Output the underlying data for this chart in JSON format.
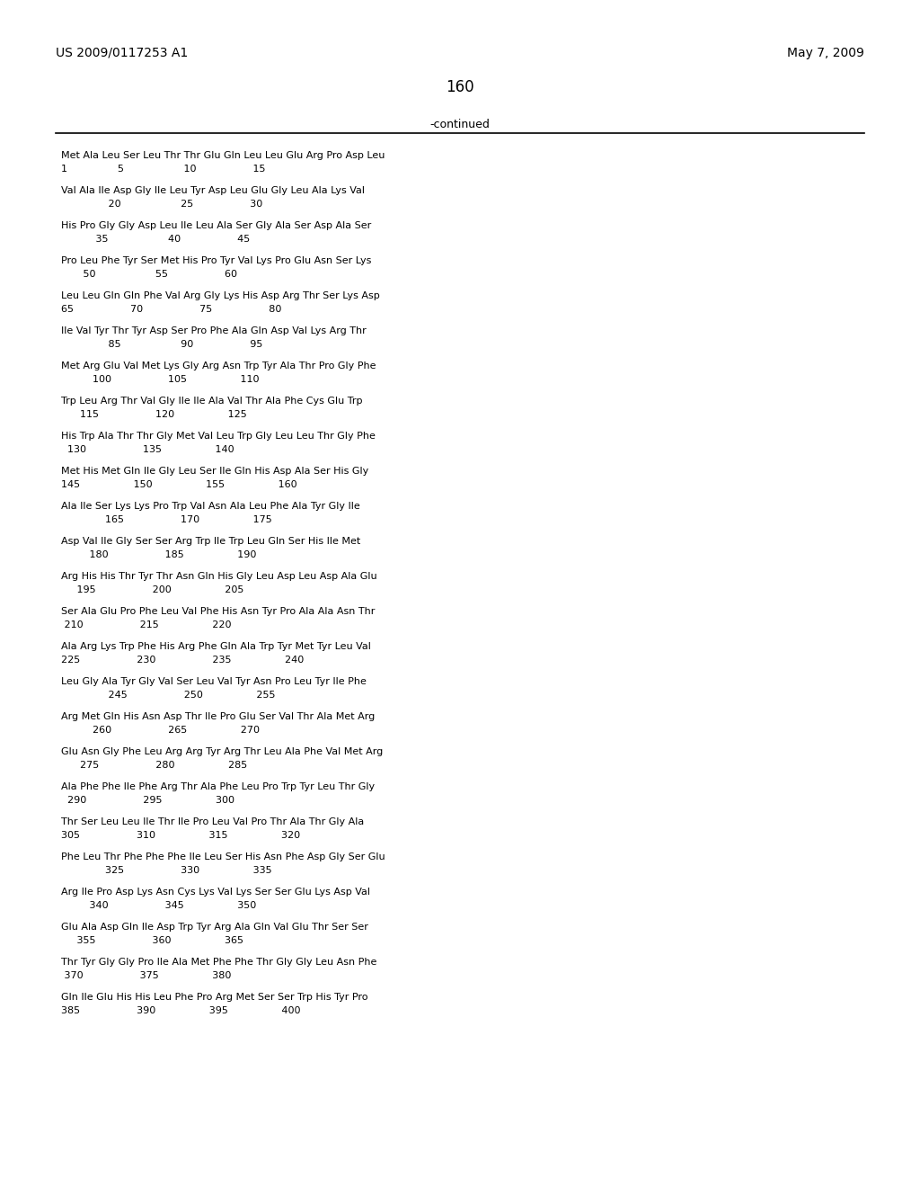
{
  "header_left": "US 2009/0117253 A1",
  "header_right": "May 7, 2009",
  "page_number": "160",
  "continued_label": "-continued",
  "background_color": "#ffffff",
  "text_color": "#000000",
  "lines": [
    [
      "Met Ala Leu Ser Leu Thr Thr Glu Gln Leu Leu Glu Arg Pro Asp Leu",
      "1                5                   10                  15"
    ],
    [
      "Val Ala Ile Asp Gly Ile Leu Tyr Asp Leu Glu Gly Leu Ala Lys Val",
      "               20                   25                  30"
    ],
    [
      "His Pro Gly Gly Asp Leu Ile Leu Ala Ser Gly Ala Ser Asp Ala Ser",
      "           35                   40                  45"
    ],
    [
      "Pro Leu Phe Tyr Ser Met His Pro Tyr Val Lys Pro Glu Asn Ser Lys",
      "       50                   55                  60"
    ],
    [
      "Leu Leu Gln Gln Phe Val Arg Gly Lys His Asp Arg Thr Ser Lys Asp",
      "65                  70                  75                  80"
    ],
    [
      "Ile Val Tyr Thr Tyr Asp Ser Pro Phe Ala Gln Asp Val Lys Arg Thr",
      "               85                   90                  95"
    ],
    [
      "Met Arg Glu Val Met Lys Gly Arg Asn Trp Tyr Ala Thr Pro Gly Phe",
      "          100                  105                 110"
    ],
    [
      "Trp Leu Arg Thr Val Gly Ile Ile Ala Val Thr Ala Phe Cys Glu Trp",
      "      115                  120                 125"
    ],
    [
      "His Trp Ala Thr Thr Gly Met Val Leu Trp Gly Leu Leu Thr Gly Phe",
      "  130                  135                 140"
    ],
    [
      "Met His Met Gln Ile Gly Leu Ser Ile Gln His Asp Ala Ser His Gly",
      "145                 150                 155                 160"
    ],
    [
      "Ala Ile Ser Lys Lys Pro Trp Val Asn Ala Leu Phe Ala Tyr Gly Ile",
      "              165                  170                 175"
    ],
    [
      "Asp Val Ile Gly Ser Ser Arg Trp Ile Trp Leu Gln Ser His Ile Met",
      "         180                  185                 190"
    ],
    [
      "Arg His His Thr Tyr Thr Asn Gln His Gly Leu Asp Leu Asp Ala Glu",
      "     195                  200                 205"
    ],
    [
      "Ser Ala Glu Pro Phe Leu Val Phe His Asn Tyr Pro Ala Ala Asn Thr",
      " 210                  215                 220"
    ],
    [
      "Ala Arg Lys Trp Phe His Arg Phe Gln Ala Trp Tyr Met Tyr Leu Val",
      "225                  230                  235                 240"
    ],
    [
      "Leu Gly Ala Tyr Gly Val Ser Leu Val Tyr Asn Pro Leu Tyr Ile Phe",
      "               245                  250                 255"
    ],
    [
      "Arg Met Gln His Asn Asp Thr Ile Pro Glu Ser Val Thr Ala Met Arg",
      "          260                  265                 270"
    ],
    [
      "Glu Asn Gly Phe Leu Arg Arg Tyr Arg Thr Leu Ala Phe Val Met Arg",
      "      275                  280                 285"
    ],
    [
      "Ala Phe Phe Ile Phe Arg Thr Ala Phe Leu Pro Trp Tyr Leu Thr Gly",
      "  290                  295                 300"
    ],
    [
      "Thr Ser Leu Leu Ile Thr Ile Pro Leu Val Pro Thr Ala Thr Gly Ala",
      "305                  310                 315                 320"
    ],
    [
      "Phe Leu Thr Phe Phe Phe Ile Leu Ser His Asn Phe Asp Gly Ser Glu",
      "              325                  330                 335"
    ],
    [
      "Arg Ile Pro Asp Lys Asn Cys Lys Val Lys Ser Ser Glu Lys Asp Val",
      "         340                  345                 350"
    ],
    [
      "Glu Ala Asp Gln Ile Asp Trp Tyr Arg Ala Gln Val Glu Thr Ser Ser",
      "     355                  360                 365"
    ],
    [
      "Thr Tyr Gly Gly Pro Ile Ala Met Phe Phe Thr Gly Gly Leu Asn Phe",
      " 370                  375                 380"
    ],
    [
      "Gln Ile Glu His His Leu Phe Pro Arg Met Ser Ser Trp His Tyr Pro",
      "385                  390                 395                 400"
    ]
  ]
}
